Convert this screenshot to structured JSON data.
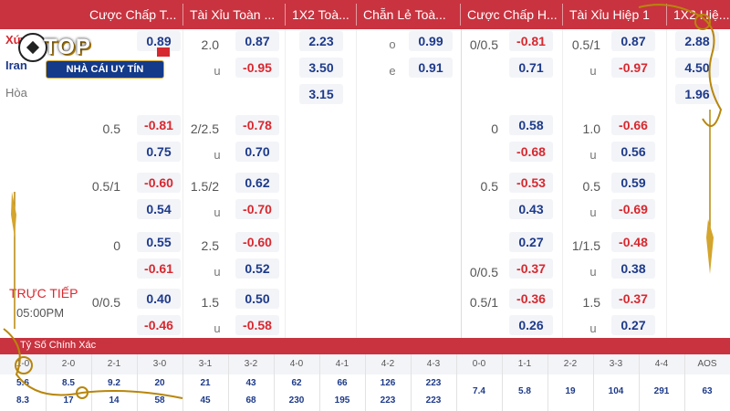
{
  "headers": [
    "Cược Chấp T...",
    "Tài Xỉu Toàn ...",
    "1X2 Toà...",
    "Chẵn Lẻ Toà...",
    "Cược Chấp H...",
    "Tài Xỉu Hiệp 1",
    "1X2 Hiệ..."
  ],
  "teams": {
    "home": "Xứ W...",
    "away": "Iran",
    "draw": "Hòa"
  },
  "logo": {
    "main": "TOP",
    "sub": "NHÀ CÁI UY TÍN"
  },
  "live": {
    "label": "TRỰC TIẾP",
    "time": "05:00PM"
  },
  "under": "u",
  "ft": {
    "hdp": [
      {
        "line": "",
        "home": "0.89",
        "away": ""
      },
      {
        "line": "0.5",
        "home": "-0.81",
        "away": "0.75"
      },
      {
        "line": "0.5/1",
        "home": "-0.60",
        "away": "0.54"
      },
      {
        "line": "0",
        "home": "0.55",
        "away": "-0.61"
      },
      {
        "line": "0/0.5",
        "home": "0.40",
        "away": "-0.46"
      }
    ],
    "ou": [
      {
        "line": "2.0",
        "over": "0.87",
        "under": "-0.95"
      },
      {
        "line": "2/2.5",
        "over": "-0.78",
        "under": "0.70"
      },
      {
        "line": "1.5/2",
        "over": "0.62",
        "under": "-0.70"
      },
      {
        "line": "2.5",
        "over": "-0.60",
        "under": "0.52"
      },
      {
        "line": "1.5",
        "over": "0.50",
        "under": "-0.58"
      }
    ],
    "x12": [
      "2.23",
      "3.50",
      "3.15"
    ],
    "oe": [
      {
        "label": "o",
        "value": "0.99"
      },
      {
        "label": "e",
        "value": "0.91"
      }
    ]
  },
  "h1": {
    "hdp": [
      {
        "line": "0/0.5",
        "home": "-0.81",
        "away": "0.71"
      },
      {
        "line": "0",
        "home": "0.58",
        "away": "-0.68"
      },
      {
        "line": "0.5",
        "home": "-0.53",
        "away": "0.43"
      },
      {
        "line": "0/0.5",
        "home": "0.27",
        "away": "-0.37"
      },
      {
        "line": "0.5/1",
        "home": "-0.36",
        "away": "0.26"
      }
    ],
    "ou": [
      {
        "line": "0.5/1",
        "over": "0.87",
        "under": "-0.97"
      },
      {
        "line": "1.0",
        "over": "-0.66",
        "under": "0.56"
      },
      {
        "line": "0.5",
        "over": "0.59",
        "under": "-0.69"
      },
      {
        "line": "1/1.5",
        "over": "-0.48",
        "under": "0.38"
      },
      {
        "line": "1.5",
        "over": "-0.37",
        "under": "0.27"
      }
    ],
    "x12": [
      "2.88",
      "4.50",
      "1.96"
    ]
  },
  "cs": {
    "title": "Tỷ Số Chính Xác",
    "cols": [
      "1-0",
      "2-0",
      "2-1",
      "3-0",
      "3-1",
      "3-2",
      "4-0",
      "4-1",
      "4-2",
      "4-3",
      "0-0",
      "1-1",
      "2-2",
      "3-3",
      "4-4",
      "AOS"
    ],
    "row1": [
      "5.6",
      "8.5",
      "9.2",
      "20",
      "21",
      "43",
      "62",
      "66",
      "126",
      "223"
    ],
    "row2": [
      "8.3",
      "17",
      "14",
      "58",
      "45",
      "68",
      "230",
      "195",
      "223",
      "223"
    ],
    "draws": [
      "7.4",
      "5.8",
      "19",
      "104",
      "291",
      "63"
    ]
  },
  "colors": {
    "header": "#c8333f",
    "positive": "#1d3a8a",
    "negative": "#d8282f",
    "cell": "#f3f4f8"
  }
}
